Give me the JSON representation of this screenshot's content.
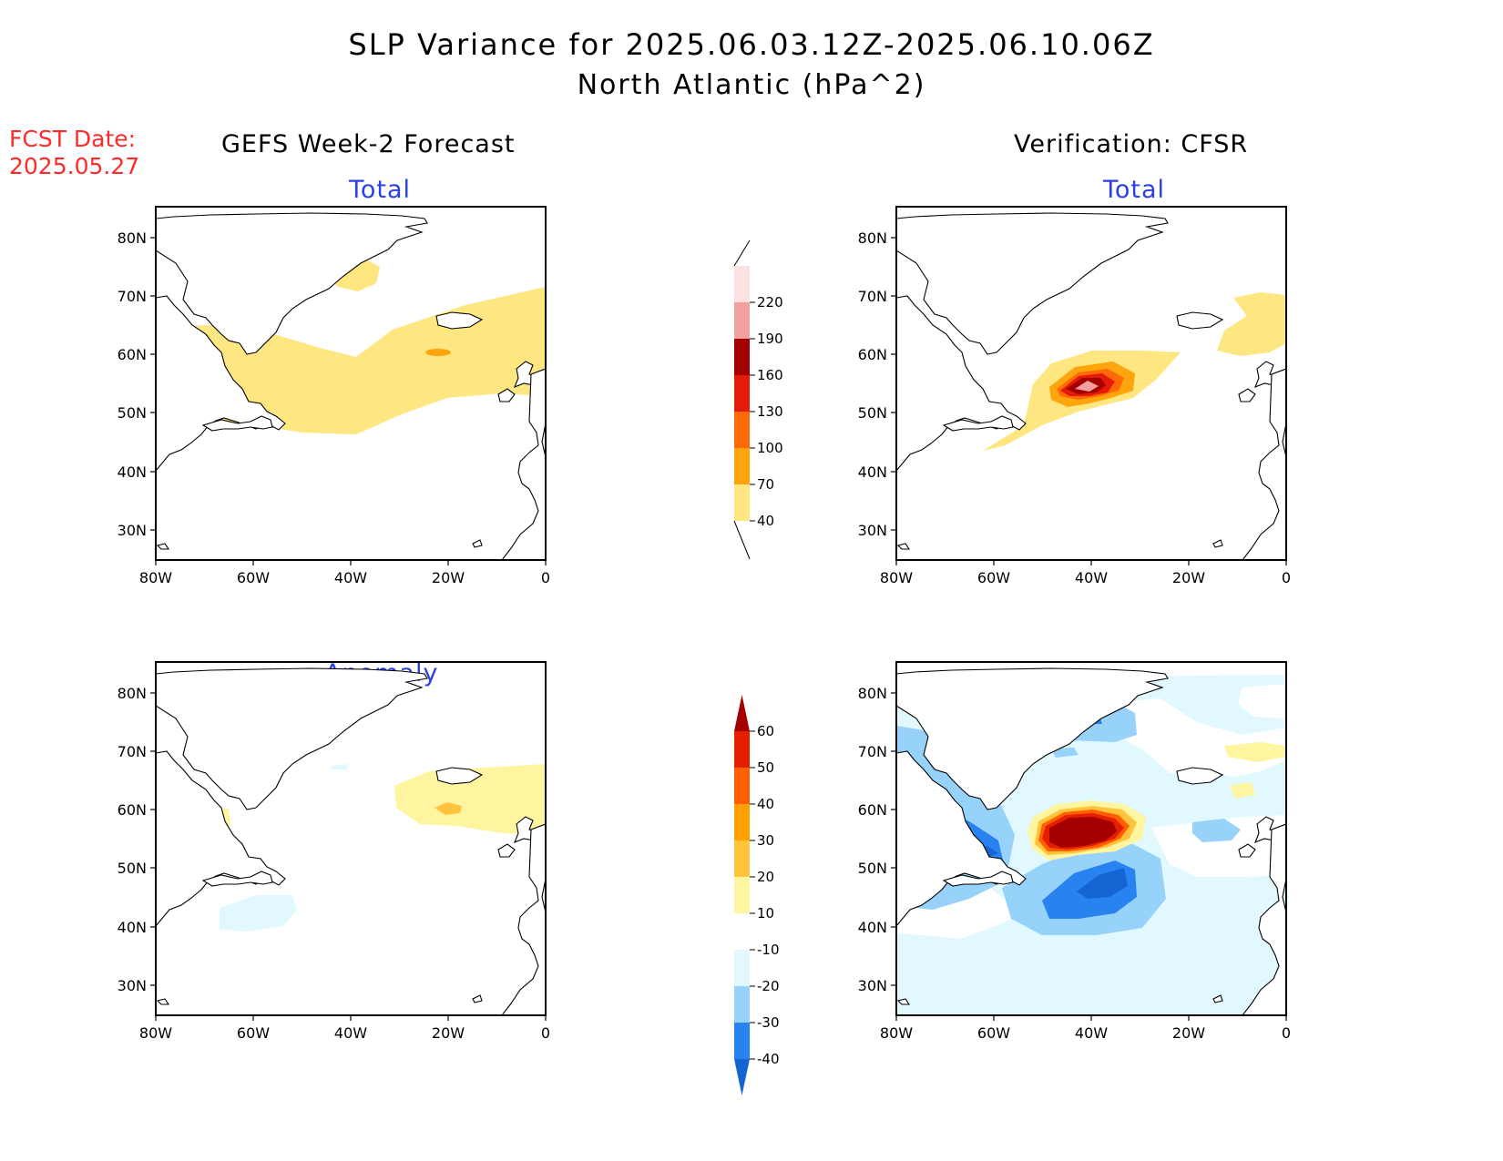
{
  "title": {
    "line1": "SLP Variance for 2025.06.03.12Z-2025.06.10.06Z",
    "line2": "North Atlantic (hPa^2)"
  },
  "forecast_date": {
    "label": "FCST Date:",
    "value": "2025.05.27"
  },
  "columns": {
    "left": "GEFS Week-2 Forecast",
    "right": "Verification: CFSR"
  },
  "panel_titles": {
    "total": "Total",
    "anomaly": "Anomaly"
  },
  "axis": {
    "lat_ticks": [
      "80N",
      "70N",
      "60N",
      "50N",
      "40N",
      "30N"
    ],
    "lon_ticks": [
      "80W",
      "60W",
      "40W",
      "20W",
      "0"
    ]
  },
  "colorbar_total": {
    "labels": [
      "40",
      "70",
      "100",
      "130",
      "160",
      "190",
      "220"
    ],
    "colors": [
      "#fee680",
      "#fea40c",
      "#fe6a08",
      "#e41a0a",
      "#a50000",
      "#f2a0a0",
      "#fde2e2"
    ]
  },
  "colorbar_anomaly": {
    "labels": [
      "-40",
      "-30",
      "-20",
      "-10",
      "10",
      "20",
      "30",
      "40",
      "50",
      "60"
    ],
    "colors": [
      "#1464d2",
      "#2882f0",
      "#96d2fa",
      "#e1f8ff",
      "#ffffff",
      "#fff5a0",
      "#ffc33c",
      "#ff9f00",
      "#ff5f00",
      "#e61e00",
      "#a50000"
    ]
  }
}
